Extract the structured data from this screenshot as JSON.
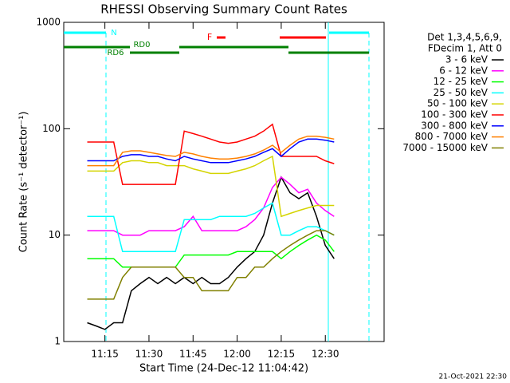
{
  "chart_data": {
    "type": "line",
    "title": "RHESSI Observing Summary Count Rates",
    "xlabel": "Start Time (24-Dec-12 11:04:42)",
    "ylabel": "Count Rate (s⁻¹ detector⁻¹)",
    "footer": "21-Oct-2021 22:30",
    "legend_header": [
      "Det 1,3,4,5,6,9,",
      "FDecim 1, Att 0"
    ],
    "legend": "right",
    "log_y": true,
    "annotations": [
      "N",
      "F",
      "RD0",
      "RD6"
    ],
    "xlim": [
      "11:01",
      "12:50"
    ],
    "xticks": [
      "11:15",
      "11:30",
      "11:45",
      "12:00",
      "12:15",
      "12:30"
    ],
    "ylim": [
      1,
      1000
    ],
    "yticks": [
      1,
      10,
      100,
      1000
    ],
    "x": [
      "11:09",
      "11:12",
      "11:15",
      "11:18",
      "11:21",
      "11:24",
      "11:27",
      "11:30",
      "11:33",
      "11:36",
      "11:39",
      "11:42",
      "11:45",
      "11:48",
      "11:51",
      "11:54",
      "11:57",
      "12:00",
      "12:03",
      "12:06",
      "12:09",
      "12:12",
      "12:15",
      "12:18",
      "12:21",
      "12:24",
      "12:27",
      "12:30",
      "12:33"
    ],
    "series": [
      {
        "name": "3 - 6 keV",
        "color": "#000000",
        "values": [
          1.5,
          1.4,
          1.3,
          1.5,
          1.5,
          3,
          3.5,
          4,
          3.5,
          4,
          3.5,
          4,
          3.5,
          4,
          3.5,
          3.5,
          4,
          5,
          6,
          7,
          10,
          20,
          35,
          25,
          22,
          25,
          15,
          8,
          6
        ]
      },
      {
        "name": "6 - 12 keV",
        "color": "#ff00ff",
        "values": [
          11,
          11,
          11,
          11,
          10,
          10,
          10,
          11,
          11,
          11,
          11,
          12,
          15,
          11,
          11,
          11,
          11,
          11,
          12,
          14,
          18,
          28,
          35,
          30,
          25,
          27,
          20,
          17,
          15
        ]
      },
      {
        "name": "12 - 25 keV",
        "color": "#00ff00",
        "values": [
          6,
          6,
          6,
          6,
          5,
          5,
          5,
          5,
          5,
          5,
          5,
          6.5,
          6.5,
          6.5,
          6.5,
          6.5,
          6.5,
          7,
          7,
          7,
          7,
          7,
          6,
          7,
          8,
          9,
          10,
          9,
          7
        ]
      },
      {
        "name": "25 - 50 keV",
        "color": "#00ffff",
        "values": [
          15,
          15,
          15,
          15,
          7,
          7,
          7,
          7,
          7,
          7,
          7,
          14,
          14,
          14,
          14,
          15,
          15,
          15,
          15,
          16,
          18,
          20,
          10,
          10,
          11,
          12,
          12,
          11,
          10
        ]
      },
      {
        "name": "50 - 100 keV",
        "color": "#d4d400",
        "values": [
          40,
          40,
          40,
          40,
          48,
          50,
          50,
          48,
          48,
          45,
          45,
          45,
          42,
          40,
          38,
          38,
          38,
          40,
          42,
          45,
          50,
          55,
          15,
          16,
          17,
          18,
          19,
          19,
          19
        ]
      },
      {
        "name": "100 - 300 keV",
        "color": "#ff0000",
        "values": [
          75,
          75,
          75,
          75,
          30,
          30,
          30,
          30,
          30,
          30,
          30,
          95,
          90,
          85,
          80,
          75,
          73,
          75,
          80,
          85,
          95,
          110,
          55,
          55,
          55,
          55,
          55,
          50,
          47
        ]
      },
      {
        "name": "300 - 800 keV",
        "color": "#0000ff",
        "values": [
          50,
          50,
          50,
          50,
          55,
          57,
          57,
          55,
          55,
          52,
          50,
          55,
          52,
          50,
          48,
          48,
          48,
          50,
          52,
          55,
          60,
          65,
          55,
          65,
          75,
          80,
          80,
          78,
          75
        ]
      },
      {
        "name": "800 - 7000 keV",
        "color": "#ff8000",
        "values": [
          45,
          45,
          45,
          45,
          60,
          62,
          62,
          60,
          58,
          56,
          55,
          60,
          58,
          55,
          53,
          52,
          52,
          53,
          55,
          58,
          63,
          70,
          60,
          70,
          80,
          85,
          85,
          83,
          80
        ]
      },
      {
        "name": "7000 - 15000 keV",
        "color": "#808000",
        "values": [
          2.5,
          2.5,
          2.5,
          2.5,
          4,
          5,
          5,
          5,
          5,
          5,
          5,
          4,
          4,
          3,
          3,
          3,
          3,
          4,
          4,
          5,
          5,
          6,
          7,
          8,
          9,
          10,
          11,
          11,
          10
        ]
      }
    ]
  }
}
